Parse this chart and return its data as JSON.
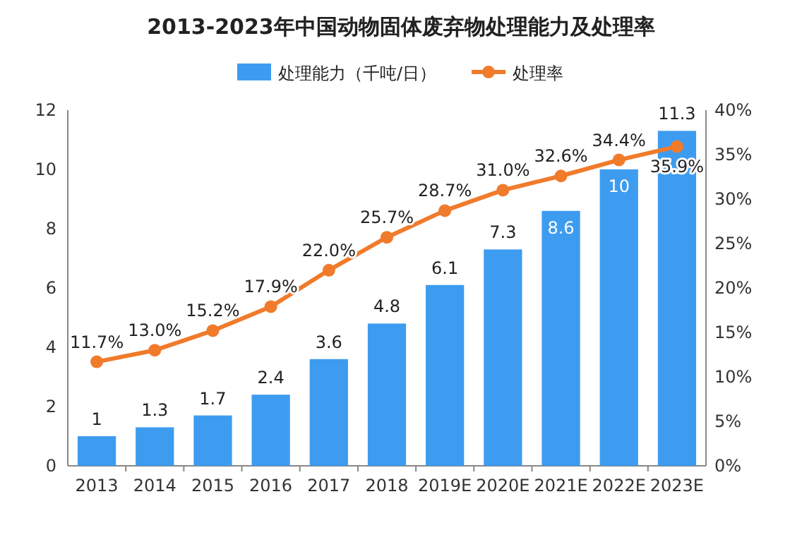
{
  "chart_data": {
    "type": "bar",
    "title": "2013-2023年中国动物固体废弃物处理能力及处理率",
    "categories": [
      "2013",
      "2014",
      "2015",
      "2016",
      "2017",
      "2018",
      "2019E",
      "2020E",
      "2021E",
      "2022E",
      "2023E"
    ],
    "series": [
      {
        "name": "处理能力（千吨/日）",
        "color": "#3d9cef",
        "values": [
          1,
          1.3,
          1.7,
          2.4,
          3.6,
          4.8,
          6.1,
          7.3,
          8.6,
          10,
          11.3
        ],
        "value_labels": [
          "1",
          "1.3",
          "1.7",
          "2.4",
          "3.6",
          "4.8",
          "6.1",
          "7.3",
          "8.6",
          "10",
          "11.3"
        ]
      },
      {
        "name": "处理率",
        "type": "line",
        "axis": "y2",
        "color": "#f07b2b",
        "marker": "circle",
        "values": [
          11.7,
          13.0,
          15.2,
          17.9,
          22.0,
          25.7,
          28.7,
          31.0,
          32.6,
          34.4,
          35.9
        ],
        "value_labels": [
          "11.7%",
          "13.0%",
          "15.2%",
          "17.9%",
          "22.0%",
          "25.7%",
          "28.7%",
          "31.0%",
          "32.6%",
          "34.4%",
          "35.9%"
        ]
      }
    ],
    "ylim": [
      0,
      12
    ],
    "yticks": [
      0,
      2,
      4,
      6,
      8,
      10,
      12
    ],
    "y2lim": [
      0,
      40
    ],
    "y2ticks": [
      {
        "value": 0,
        "label": "0%"
      },
      {
        "value": 5,
        "label": "5%"
      },
      {
        "value": 10,
        "label": "10%"
      },
      {
        "value": 15,
        "label": "15%"
      },
      {
        "value": 20,
        "label": "20%"
      },
      {
        "value": 25,
        "label": "25%"
      },
      {
        "value": 30,
        "label": "30%"
      },
      {
        "value": 35,
        "label": "35%"
      },
      {
        "value": 40,
        "label": "40%"
      }
    ],
    "legend": "top"
  }
}
